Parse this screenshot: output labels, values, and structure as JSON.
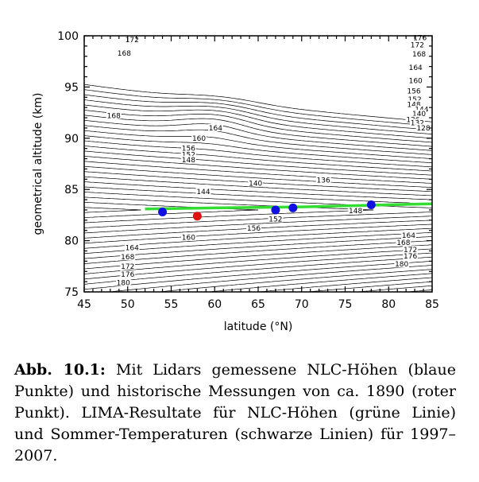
{
  "chart_data": {
    "type": "contour",
    "xlabel": "latitude (°N)",
    "ylabel": "geometrical altitude (km)",
    "xlim": [
      45,
      85
    ],
    "ylim": [
      75,
      100
    ],
    "x_ticks": [
      45,
      50,
      55,
      60,
      65,
      70,
      75,
      80,
      85
    ],
    "y_ticks": [
      75,
      80,
      85,
      90,
      95,
      100
    ],
    "grid": false,
    "series": [
      {
        "type": "points",
        "color": "#1010e0",
        "points": [
          [
            54,
            82.8
          ],
          [
            67,
            83.0
          ],
          [
            69,
            83.2
          ],
          [
            78,
            83.5
          ]
        ]
      },
      {
        "type": "points",
        "color": "#e01010",
        "points": [
          [
            58,
            82.4
          ]
        ]
      },
      {
        "type": "line",
        "color": "#33dd33",
        "points": [
          [
            52,
            83.1
          ],
          [
            60,
            83.2
          ],
          [
            70,
            83.3
          ],
          [
            85,
            83.6
          ]
        ]
      }
    ],
    "contour_labels": [
      {
        "text": "172",
        "x": 50.5,
        "y": 99.6
      },
      {
        "text": "168",
        "x": 49.6,
        "y": 98.3
      },
      {
        "text": "176",
        "x": 83.6,
        "y": 99.8
      },
      {
        "text": "172",
        "x": 83.3,
        "y": 99.1
      },
      {
        "text": "168",
        "x": 83.5,
        "y": 98.2
      },
      {
        "text": "164",
        "x": 83.1,
        "y": 96.9
      },
      {
        "text": "160",
        "x": 83.1,
        "y": 95.6
      },
      {
        "text": "156",
        "x": 82.9,
        "y": 94.6
      },
      {
        "text": "152",
        "x": 83.0,
        "y": 93.8
      },
      {
        "text": "148",
        "x": 82.9,
        "y": 93.3
      },
      {
        "text": "144",
        "x": 83.8,
        "y": 92.8
      },
      {
        "text": "140",
        "x": 83.5,
        "y": 92.4
      },
      {
        "text": "136",
        "x": 82.8,
        "y": 91.8
      },
      {
        "text": "132",
        "x": 83.3,
        "y": 91.5
      },
      {
        "text": "128",
        "x": 84.0,
        "y": 91.0
      },
      {
        "text": "168",
        "x": 48.4,
        "y": 92.2
      },
      {
        "text": "164",
        "x": 60.1,
        "y": 91.0
      },
      {
        "text": "160",
        "x": 58.2,
        "y": 90.0
      },
      {
        "text": "156",
        "x": 57.0,
        "y": 89.0
      },
      {
        "text": "152",
        "x": 57.0,
        "y": 88.4
      },
      {
        "text": "148",
        "x": 57.0,
        "y": 87.9
      },
      {
        "text": "144",
        "x": 58.7,
        "y": 84.8
      },
      {
        "text": "140",
        "x": 64.7,
        "y": 85.6
      },
      {
        "text": "136",
        "x": 72.5,
        "y": 85.9
      },
      {
        "text": "148",
        "x": 76.2,
        "y": 82.9
      },
      {
        "text": "152",
        "x": 67.0,
        "y": 82.1
      },
      {
        "text": "156",
        "x": 64.5,
        "y": 81.2
      },
      {
        "text": "160",
        "x": 57.0,
        "y": 80.3
      },
      {
        "text": "164",
        "x": 50.5,
        "y": 79.3
      },
      {
        "text": "168",
        "x": 50.0,
        "y": 78.4
      },
      {
        "text": "172",
        "x": 50.0,
        "y": 77.5
      },
      {
        "text": "176",
        "x": 50.0,
        "y": 76.7
      },
      {
        "text": "180",
        "x": 49.5,
        "y": 75.9
      },
      {
        "text": "164",
        "x": 82.3,
        "y": 80.5
      },
      {
        "text": "168",
        "x": 81.7,
        "y": 79.8
      },
      {
        "text": "172",
        "x": 82.5,
        "y": 79.1
      },
      {
        "text": "176",
        "x": 82.5,
        "y": 78.5
      },
      {
        "text": "180",
        "x": 81.5,
        "y": 77.7
      }
    ]
  },
  "caption": {
    "label": "Abb. 10.1:",
    "text": " Mit Lidars gemessene NLC-Höhen (blaue Punkte) und historische Messungen von ca. 1890 (roter Punkt). LIMA-Resultate für NLC-Höhen (grüne Linie) und Sommer-Temperaturen (schwarze Linien) für 1997–2007."
  }
}
